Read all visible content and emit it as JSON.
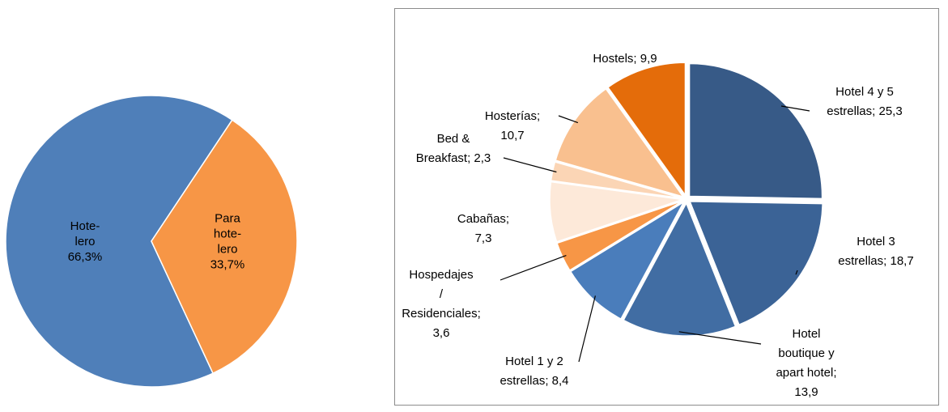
{
  "chart_data": [
    {
      "type": "pie",
      "values": [
        66.3,
        33.7
      ],
      "value_labels": [
        "Hote-\nlero\n66,3%",
        "Para\nhote-\nlero\n33,7%"
      ],
      "colors": [
        "#4f7fb9",
        "#f79646"
      ]
    },
    {
      "type": "pie",
      "values": [
        25.3,
        18.7,
        13.9,
        8.4,
        3.6,
        7.3,
        2.3,
        10.7,
        9.9
      ],
      "value_labels": [
        "Hotel 4 y 5\nestrellas; 25,3",
        "Hotel 3\nestrellas; 18,7",
        "Hotel\nboutique y\napart hotel;\n13,9",
        "Hotel 1 y 2\nestrellas; 8,4",
        "Hospedajes\n/\nResidenciales;\n3,6",
        "Cabañas;\n7,3",
        "Bed &\nBreakfast; 2,3",
        "Hosterías;\n10,7",
        "Hostels; 9,9"
      ],
      "colors": [
        "#375a87",
        "#3b6396",
        "#416da3",
        "#4a7dbb",
        "#f79646",
        "#fde9d9",
        "#fbd5b5",
        "#f9c08f",
        "#e46c0a"
      ]
    }
  ]
}
